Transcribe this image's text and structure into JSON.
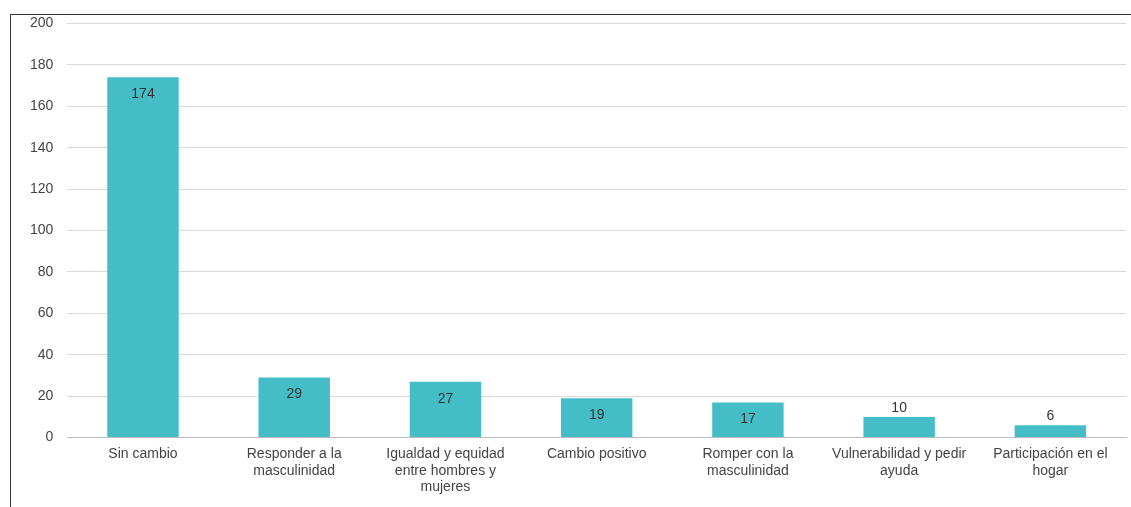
{
  "chart_data": {
    "type": "bar",
    "categories": [
      "Sin cambio",
      "Responder a la masculinidad",
      "Igualdad y equidad entre hombres y mujeres",
      "Cambio positivo",
      "Romper con la masculinidad",
      "Vulnerabilidad y pedir ayuda",
      "Participación en el hogar"
    ],
    "values": [
      174,
      29,
      27,
      19,
      17,
      10,
      6
    ],
    "color": "#45bdc6",
    "ylim": [
      0,
      200
    ],
    "yticks": [
      0,
      20,
      40,
      60,
      80,
      100,
      120,
      140,
      160,
      180,
      200
    ],
    "grid": "y",
    "data_labels": true,
    "legend": false
  }
}
